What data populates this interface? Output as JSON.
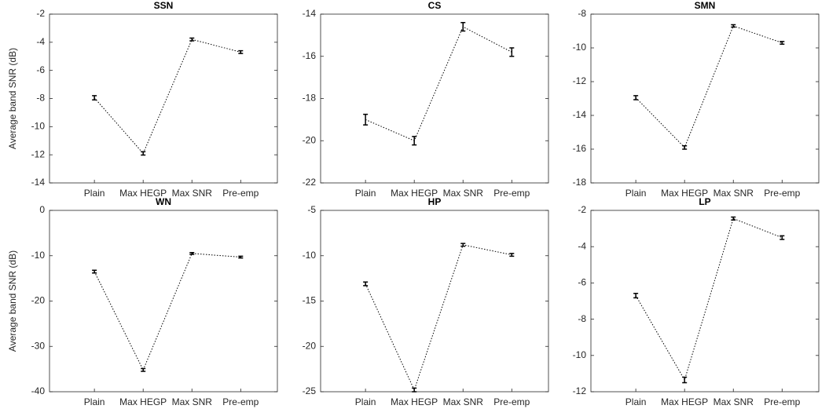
{
  "chart_data": [
    {
      "type": "line",
      "title": "SSN",
      "ylabel": "Average band SNR (dB)",
      "categories": [
        "Plain",
        "Max HEGP",
        "Max SNR",
        "Pre-emp"
      ],
      "values": [
        -7.95,
        -11.9,
        -3.8,
        -4.7
      ],
      "errors": [
        0.15,
        0.12,
        0.1,
        0.1
      ],
      "color": "#000000",
      "ylim": [
        -14,
        -2
      ],
      "yticks": [
        -14,
        -12,
        -10,
        -8,
        -6,
        -4,
        -2
      ]
    },
    {
      "type": "line",
      "title": "CS",
      "categories": [
        "Plain",
        "Max HEGP",
        "Max SNR",
        "Pre-emp"
      ],
      "values": [
        -19.0,
        -20.0,
        -14.6,
        -15.8
      ],
      "errors": [
        0.25,
        0.2,
        0.2,
        0.2
      ],
      "color": "#000000",
      "ylim": [
        -22,
        -14
      ],
      "yticks": [
        -22,
        -20,
        -18,
        -16,
        -14
      ]
    },
    {
      "type": "line",
      "title": "SMN",
      "categories": [
        "Plain",
        "Max HEGP",
        "Max SNR",
        "Pre-emp"
      ],
      "values": [
        -12.95,
        -15.9,
        -8.7,
        -9.7
      ],
      "errors": [
        0.12,
        0.1,
        0.07,
        0.08
      ],
      "color": "#000000",
      "ylim": [
        -18,
        -8
      ],
      "yticks": [
        -18,
        -16,
        -14,
        -12,
        -10,
        -8
      ]
    },
    {
      "type": "line",
      "title": "WN",
      "ylabel": "Average band SNR (dB)",
      "categories": [
        "Plain",
        "Max HEGP",
        "Max SNR",
        "Pre-emp"
      ],
      "values": [
        -13.5,
        -35.2,
        -9.5,
        -10.3
      ],
      "errors": [
        0.3,
        0.3,
        0.2,
        0.2
      ],
      "color": "#000000",
      "ylim": [
        -40,
        0
      ],
      "yticks": [
        -40,
        -30,
        -20,
        -10,
        0
      ]
    },
    {
      "type": "line",
      "title": "HP",
      "categories": [
        "Plain",
        "Max HEGP",
        "Max SNR",
        "Pre-emp"
      ],
      "values": [
        -13.1,
        -24.8,
        -8.8,
        -9.9
      ],
      "errors": [
        0.2,
        0.2,
        0.15,
        0.15
      ],
      "color": "#000000",
      "ylim": [
        -25,
        -5
      ],
      "yticks": [
        -25,
        -20,
        -15,
        -10,
        -5
      ]
    },
    {
      "type": "line",
      "title": "LP",
      "categories": [
        "Plain",
        "Max HEGP",
        "Max SNR",
        "Pre-emp"
      ],
      "values": [
        -6.7,
        -11.35,
        -2.45,
        -3.5
      ],
      "errors": [
        0.12,
        0.15,
        0.08,
        0.1
      ],
      "color": "#000000",
      "ylim": [
        -12,
        -2
      ],
      "yticks": [
        -12,
        -10,
        -8,
        -6,
        -4,
        -2
      ]
    }
  ]
}
